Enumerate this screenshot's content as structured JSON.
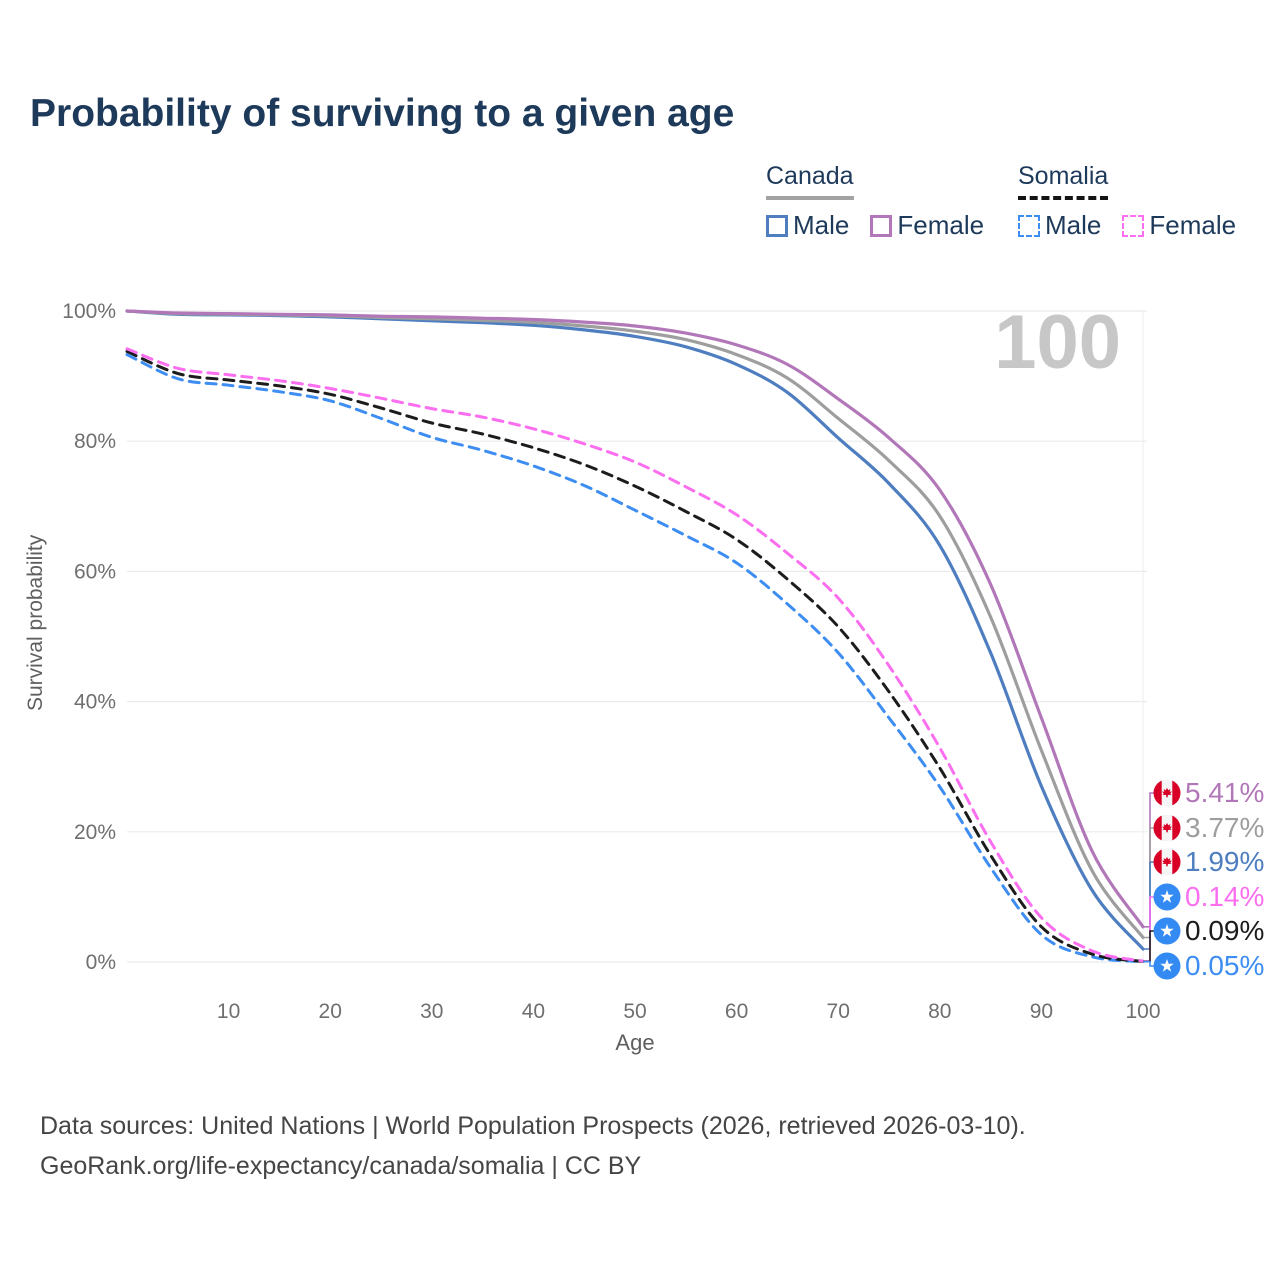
{
  "title": "Probability of surviving to a given age",
  "watermark": "100",
  "legend": {
    "groups": [
      {
        "name": "Canada",
        "rule_style": "solid",
        "rule_color": "#a3a3a3",
        "items": [
          {
            "label": "Male",
            "color": "#4e7ec0"
          },
          {
            "label": "Female",
            "color": "#b277b8"
          }
        ]
      },
      {
        "name": "Somalia",
        "rule_style": "dashed",
        "rule_color": "#141414",
        "items": [
          {
            "label": "Male",
            "color": "#3d8df2"
          },
          {
            "label": "Female",
            "color": "#fb6ef0"
          }
        ]
      }
    ]
  },
  "chart_data": {
    "type": "line",
    "title": "Probability of surviving to a given age",
    "xlabel": "Age",
    "ylabel": "Survival probability",
    "xlim": [
      0,
      100
    ],
    "ylim": [
      0,
      100
    ],
    "grid": "horizontal",
    "x_ticks": [
      10,
      20,
      30,
      40,
      50,
      60,
      70,
      80,
      90,
      100
    ],
    "y_ticks": [
      0,
      20,
      40,
      60,
      80,
      100
    ],
    "y_tick_labels": [
      "0%",
      "20%",
      "40%",
      "60%",
      "80%",
      "100%"
    ],
    "x": [
      0,
      5,
      10,
      15,
      20,
      25,
      30,
      35,
      40,
      45,
      50,
      55,
      60,
      65,
      70,
      75,
      80,
      85,
      90,
      95,
      100
    ],
    "series": [
      {
        "id": "somalia-male",
        "country": "Somalia",
        "sex": "Male",
        "color": "#3d8df2",
        "dash": true,
        "flag": "somalia",
        "end_label": "0.05%",
        "values": [
          93.3,
          89.6,
          88.6,
          87.6,
          86.2,
          83.5,
          80.6,
          78.6,
          76.2,
          73.2,
          69.4,
          65.5,
          61.3,
          55,
          47.5,
          37.5,
          26.9,
          14.5,
          4.2,
          0.8,
          0.05
        ]
      },
      {
        "id": "somalia-both",
        "country": "Somalia",
        "sex": "Both",
        "color": "#1c1c1c",
        "dash": true,
        "flag": "somalia",
        "end_label": "0.09%",
        "values": [
          93.8,
          90.4,
          89.4,
          88.5,
          87.2,
          85.1,
          82.8,
          81.1,
          79,
          76.4,
          73.1,
          69.2,
          64.9,
          58.8,
          51.5,
          41.5,
          29.8,
          16.4,
          5.4,
          1.2,
          0.09
        ]
      },
      {
        "id": "somalia-female",
        "country": "Somalia",
        "sex": "Female",
        "color": "#fb6ef0",
        "dash": true,
        "flag": "somalia",
        "end_label": "0.14%",
        "values": [
          94.2,
          91.2,
          90.2,
          89.3,
          88.1,
          86.6,
          85,
          83.7,
          81.9,
          79.6,
          76.8,
          73,
          68.7,
          62.8,
          55.9,
          45.5,
          32.9,
          18.5,
          6.8,
          1.7,
          0.14
        ]
      },
      {
        "id": "canada-male",
        "country": "Canada",
        "sex": "Male",
        "color": "#4e7ec0",
        "dash": false,
        "flag": "canada",
        "end_label": "1.99%",
        "values": [
          100,
          99.5,
          99.4,
          99.3,
          99.1,
          98.8,
          98.5,
          98.2,
          97.8,
          97.1,
          96.1,
          94.5,
          91.8,
          87.5,
          80.5,
          73.5,
          64,
          47.5,
          27,
          11,
          1.99
        ]
      },
      {
        "id": "canada-both",
        "country": "Canada",
        "sex": "Both",
        "color": "#9e9e9e",
        "dash": false,
        "flag": "canada",
        "end_label": "3.77%",
        "values": [
          100,
          99.6,
          99.5,
          99.4,
          99.25,
          99,
          98.8,
          98.55,
          98.25,
          97.7,
          96.9,
          95.6,
          93.3,
          89.7,
          83.5,
          77,
          68.5,
          53,
          32.5,
          14,
          3.77
        ]
      },
      {
        "id": "canada-female",
        "country": "Canada",
        "sex": "Female",
        "color": "#b277b8",
        "dash": false,
        "flag": "canada",
        "end_label": "5.41%",
        "values": [
          100,
          99.7,
          99.6,
          99.5,
          99.4,
          99.2,
          99.1,
          98.9,
          98.7,
          98.3,
          97.7,
          96.6,
          94.8,
          91.8,
          86.5,
          80.5,
          72.5,
          58,
          37.5,
          17,
          5.41
        ]
      }
    ],
    "end_label_order": [
      "canada-female",
      "canada-both",
      "canada-male",
      "somalia-female",
      "somalia-both",
      "somalia-male"
    ],
    "flag_colors": {
      "canada_red": "#d80027",
      "canada_white": "#f5f5f5",
      "somalia_blue": "#338af3",
      "somalia_star": "#ffffff"
    },
    "legend_position": "top-right"
  },
  "footer": {
    "line1": "Data sources: United Nations | World Population Prospects (2026, retrieved 2026-03-10).",
    "line2": "GeoRank.org/life-expectancy/canada/somalia | CC BY"
  }
}
